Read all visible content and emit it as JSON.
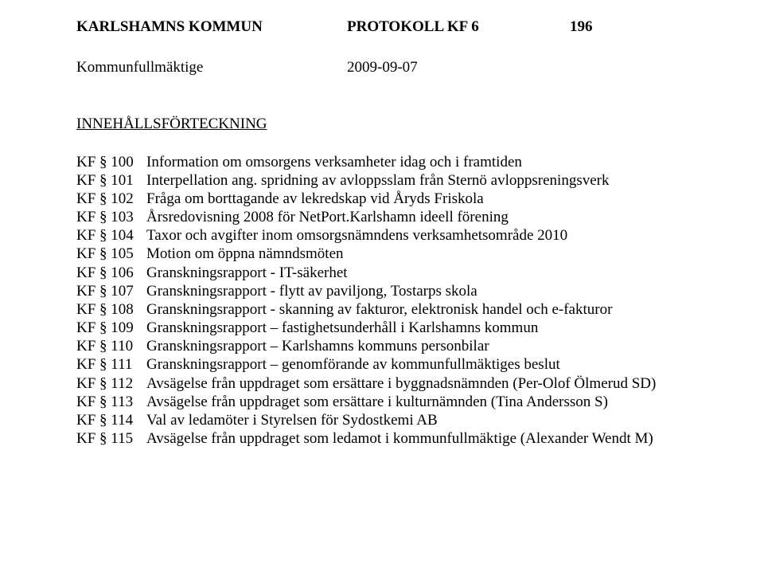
{
  "header": {
    "org": "KARLSHAMNS KOMMUN",
    "doc": "PROTOKOLL KF 6",
    "page": "196"
  },
  "subheader": {
    "body": "Kommunfullmäktige",
    "date": "2009-09-07"
  },
  "toc_title": "INNEHÅLLSFÖRTECKNING",
  "items": [
    {
      "key": "KF § 100",
      "text": "Information om omsorgens verksamheter idag och i framtiden"
    },
    {
      "key": "KF § 101",
      "text": "Interpellation ang. spridning av avloppsslam från Sternö avloppsreningsverk"
    },
    {
      "key": "KF § 102",
      "text": "Fråga om borttagande av lekredskap vid Åryds Friskola"
    },
    {
      "key": "KF § 103",
      "text": "Årsredovisning 2008 för NetPort.Karlshamn ideell förening"
    },
    {
      "key": "KF § 104",
      "text": "Taxor och avgifter inom omsorgsnämndens verksamhetsområde 2010"
    },
    {
      "key": "KF § 105",
      "text": "Motion om öppna nämndsmöten"
    },
    {
      "key": "KF § 106",
      "text": "Granskningsrapport - IT-säkerhet"
    },
    {
      "key": "KF § 107",
      "text": "Granskningsrapport - flytt av paviljong, Tostarps skola"
    },
    {
      "key": "KF § 108",
      "text": "Granskningsrapport - skanning av fakturor, elektronisk handel och e-fakturor"
    },
    {
      "key": "KF § 109",
      "text": "Granskningsrapport – fastighetsunderhåll i Karlshamns kommun"
    },
    {
      "key": "KF § 110",
      "text": "Granskningsrapport – Karlshamns kommuns personbilar"
    },
    {
      "key": "KF § 111",
      "text": "Granskningsrapport – genomförande av kommunfullmäktiges beslut"
    },
    {
      "key": "KF § 112",
      "text": "Avsägelse från uppdraget som ersättare i byggnadsnämnden (Per-Olof Ölmerud SD)"
    },
    {
      "key": "KF § 113",
      "text": "Avsägelse från uppdraget som ersättare i kulturnämnden (Tina Andersson S)"
    },
    {
      "key": "KF § 114",
      "text": "Val av ledamöter i Styrelsen för Sydostkemi AB"
    },
    {
      "key": "KF § 115",
      "text": "Avsägelse från uppdraget som ledamot i kommunfullmäktige (Alexander Wendt M)"
    }
  ]
}
